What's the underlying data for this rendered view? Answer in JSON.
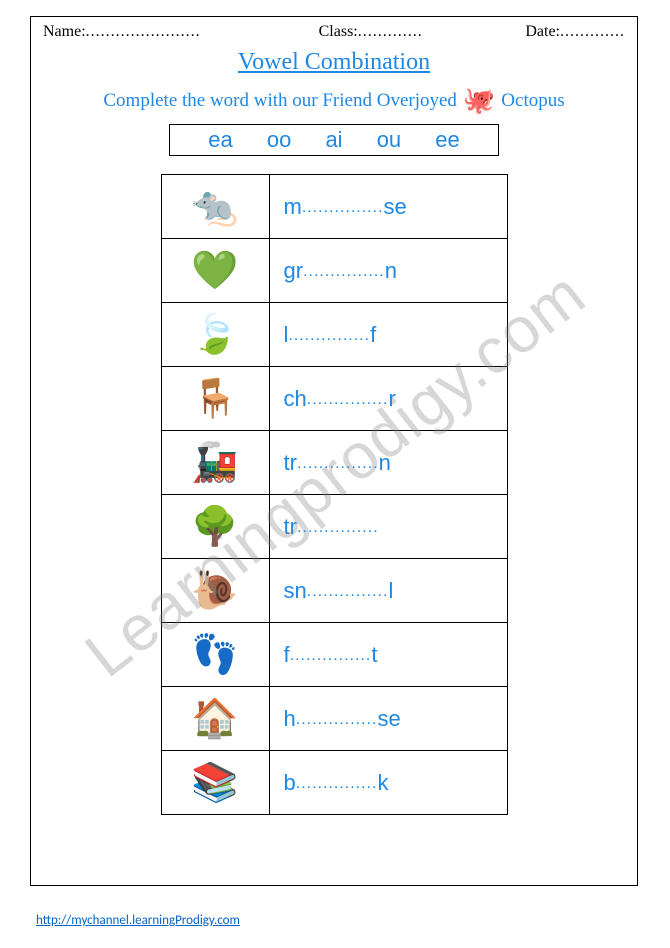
{
  "header": {
    "name_label": "Name:",
    "class_label": "Class:",
    "date_label": "Date:",
    "dots_long": ".......................",
    "dots_short": "............."
  },
  "title": "Vowel Combination",
  "instruction": {
    "pre": "Complete the word with our Friend Overjoyed",
    "icon": "🐙",
    "post": "Octopus"
  },
  "vowels": [
    "ea",
    "oo",
    "ai",
    "ou",
    "ee"
  ],
  "rows": [
    {
      "icon": "🐀",
      "pre": "m",
      "post": "se"
    },
    {
      "icon": "💚",
      "pre": "gr",
      "post": "n"
    },
    {
      "icon": "🍃",
      "pre": "l",
      "post": "f"
    },
    {
      "icon": "🪑",
      "pre": "ch",
      "post": "r"
    },
    {
      "icon": "🚂",
      "pre": "tr",
      "post": "n"
    },
    {
      "icon": "🌳",
      "pre": "tr",
      "post": ""
    },
    {
      "icon": "🐌",
      "pre": "sn",
      "post": "l"
    },
    {
      "icon": "👣",
      "pre": "f",
      "post": "t"
    },
    {
      "icon": "🏠",
      "pre": "h",
      "post": "se"
    },
    {
      "icon": "📚",
      "pre": "b",
      "post": "k"
    }
  ],
  "blank_dots": "...............",
  "footer_url": "http://mychannel.learningProdigy.com",
  "watermark": "Learningprodigy.com",
  "colors": {
    "accent": "#1e88e5",
    "link": "#0563c1",
    "watermark": "rgba(130,130,130,0.32)"
  }
}
